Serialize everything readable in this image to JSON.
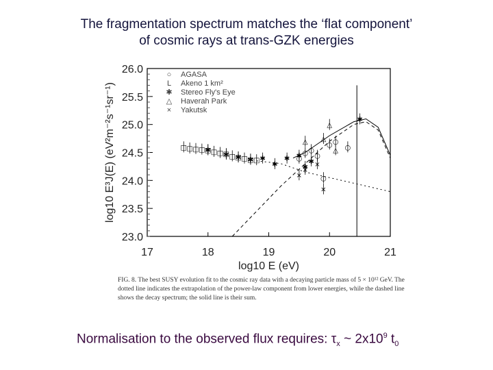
{
  "slide": {
    "title_line1": "The fragmentation spectrum matches the ‘flat component’",
    "title_line2": "of cosmic rays at trans-GZK energies",
    "caption": "FIG. 8. The best SUSY evolution fit to the cosmic ray data with a decaying particle mass of 5 × 10¹² GeV. The dotted line indicates the extrapolation of the power-law component from lower energies, while the dashed line shows the decay spectrum; the solid line is their sum.",
    "bottom_prefix": "Normalisation to the observed flux requires: τ",
    "bottom_sub": "x",
    "bottom_mid": " ~ 2x10",
    "bottom_sup": "9",
    "bottom_t": " t",
    "bottom_sub2": "0"
  },
  "chart_data": {
    "type": "scatter",
    "title": "",
    "xlabel": "log10 E (eV)",
    "ylabel": "log10 E³J(E) (eV²m⁻²s⁻¹sr⁻¹)",
    "xlim": [
      17,
      21
    ],
    "ylim": [
      23.0,
      26.0
    ],
    "xticks": [
      "17",
      "18",
      "19",
      "20",
      "21"
    ],
    "yticks": [
      "23.0",
      "23.5",
      "24.0",
      "24.5",
      "25.0",
      "25.5",
      "26.0"
    ],
    "legend": [
      {
        "marker": "circle",
        "label": "AGASA"
      },
      {
        "marker": "L",
        "label": "Akeno 1 km²"
      },
      {
        "marker": "asterisk",
        "label": "Stereo Fly's Eye"
      },
      {
        "marker": "triangle",
        "label": "Haverah Park"
      },
      {
        "marker": "x",
        "label": "Yakutsk"
      }
    ],
    "series": [
      {
        "name": "Akeno 1 km²",
        "x": [
          17.6,
          17.7,
          17.8,
          17.9,
          18.0,
          18.1,
          18.2,
          18.3,
          18.4,
          18.5,
          18.6,
          18.7,
          18.8
        ],
        "y": [
          24.6,
          24.58,
          24.57,
          24.56,
          24.55,
          24.52,
          24.5,
          24.48,
          24.44,
          24.42,
          24.4,
          24.38,
          24.37
        ]
      },
      {
        "name": "Stereo Fly's Eye",
        "x": [
          18.0,
          18.3,
          18.5,
          18.7,
          18.9,
          19.1,
          19.3,
          19.5,
          19.6,
          19.7,
          20.5
        ],
        "y": [
          24.55,
          24.47,
          24.42,
          24.38,
          24.4,
          24.3,
          24.4,
          24.45,
          24.25,
          24.35,
          25.1
        ]
      },
      {
        "name": "AGASA",
        "x": [
          19.5,
          19.6,
          19.7,
          19.8,
          19.9,
          20.0,
          20.1,
          20.3
        ],
        "y": [
          24.4,
          24.5,
          24.55,
          24.45,
          24.05,
          24.65,
          24.7,
          24.6
        ]
      },
      {
        "name": "Haverah Park",
        "x": [
          19.6,
          19.9,
          20.0,
          20.1
        ],
        "y": [
          24.7,
          24.75,
          25.0,
          24.55
        ]
      },
      {
        "name": "Yakutsk",
        "x": [
          19.5,
          19.6,
          19.8,
          19.9
        ],
        "y": [
          24.1,
          24.2,
          24.3,
          23.85
        ]
      }
    ],
    "curves": [
      {
        "name": "power-law extrapolation (dotted)",
        "x": [
          18.8,
          19.2,
          19.6,
          20.0,
          20.4,
          20.8,
          21.0
        ],
        "y": [
          24.35,
          24.3,
          24.15,
          24.05,
          23.95,
          23.85,
          23.8
        ]
      },
      {
        "name": "decay spectrum (dashed)",
        "x": [
          18.4,
          18.8,
          19.2,
          19.6,
          20.0,
          20.4,
          20.6,
          20.8,
          21.0
        ],
        "y": [
          23.0,
          23.45,
          23.9,
          24.3,
          24.7,
          25.0,
          25.05,
          24.9,
          24.4
        ]
      },
      {
        "name": "sum (solid)",
        "x": [
          19.4,
          19.6,
          20.0,
          20.4,
          20.6,
          20.8,
          21.0
        ],
        "y": [
          24.4,
          24.5,
          24.8,
          25.05,
          25.1,
          24.95,
          24.45
        ]
      }
    ],
    "grid": false
  }
}
